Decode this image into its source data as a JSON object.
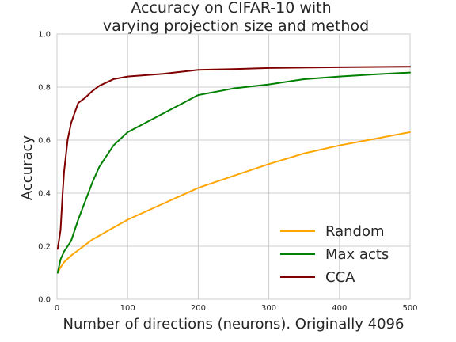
{
  "chart_data": {
    "type": "line",
    "title": [
      "Accuracy on CIFAR-10 with",
      "varying projection size and method"
    ],
    "xlabel": "Number of directions (neurons). Originally 4096",
    "ylabel": "Accuracy",
    "xlim": [
      0,
      500
    ],
    "ylim": [
      0.0,
      1.0
    ],
    "xticks": [
      0,
      100,
      200,
      300,
      400,
      500
    ],
    "yticks": [
      0.0,
      0.2,
      0.4,
      0.6,
      0.8,
      1.0
    ],
    "xtick_labels": [
      "0",
      "100",
      "200",
      "300",
      "400",
      "500"
    ],
    "ytick_labels": [
      "0.0",
      "0.2",
      "0.4",
      "0.6",
      "0.8",
      "1.0"
    ],
    "grid": true,
    "legend_position": "bottom-right",
    "series": [
      {
        "name": "Random",
        "color": "#ffa500",
        "x": [
          1,
          5,
          10,
          20,
          30,
          40,
          50,
          60,
          80,
          100,
          150,
          200,
          250,
          300,
          350,
          400,
          450,
          500
        ],
        "y": [
          0.1,
          0.12,
          0.14,
          0.165,
          0.185,
          0.205,
          0.225,
          0.24,
          0.27,
          0.3,
          0.36,
          0.42,
          0.465,
          0.51,
          0.55,
          0.58,
          0.605,
          0.63
        ]
      },
      {
        "name": "Max acts",
        "color": "#008000",
        "x": [
          1,
          5,
          10,
          20,
          30,
          40,
          50,
          60,
          80,
          100,
          150,
          200,
          250,
          300,
          350,
          400,
          450,
          500
        ],
        "y": [
          0.1,
          0.15,
          0.18,
          0.22,
          0.3,
          0.37,
          0.44,
          0.5,
          0.58,
          0.63,
          0.7,
          0.77,
          0.795,
          0.81,
          0.83,
          0.84,
          0.848,
          0.855
        ]
      },
      {
        "name": "CCA",
        "color": "#800000",
        "x": [
          1,
          5,
          8,
          10,
          15,
          20,
          30,
          40,
          50,
          60,
          80,
          100,
          150,
          200,
          250,
          300,
          400,
          500
        ],
        "y": [
          0.19,
          0.26,
          0.4,
          0.48,
          0.6,
          0.665,
          0.74,
          0.76,
          0.785,
          0.805,
          0.83,
          0.84,
          0.85,
          0.865,
          0.868,
          0.872,
          0.875,
          0.877
        ]
      }
    ]
  }
}
